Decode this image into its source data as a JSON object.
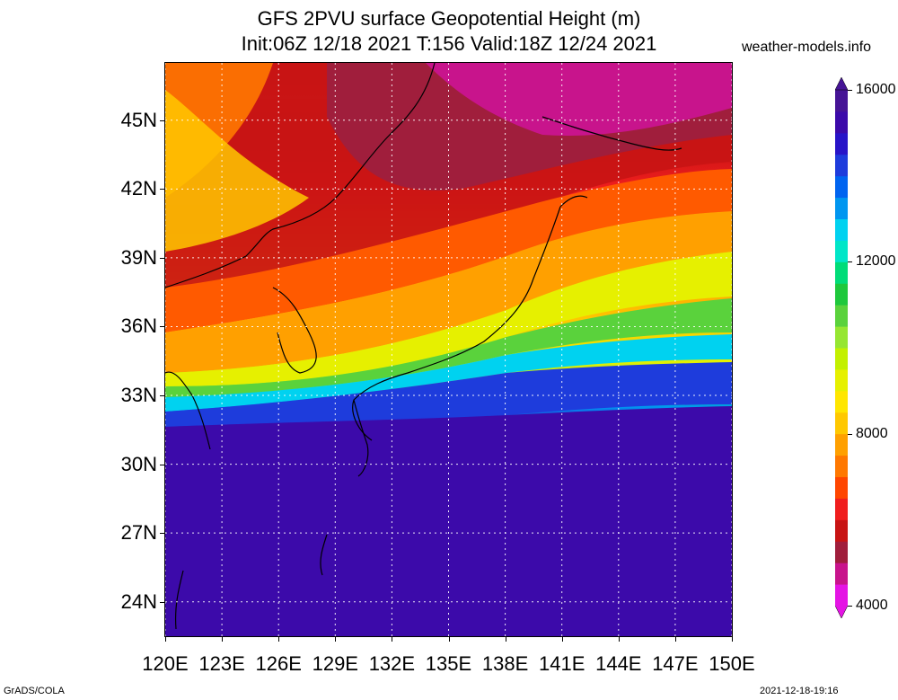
{
  "title": {
    "line1": "GFS 2PVU surface Geopotential Height (m)",
    "line2": "Init:06Z 12/18 2021 T:156 Valid:18Z 12/24 2021"
  },
  "site": "weather-models.info",
  "map": {
    "lon_range": [
      120,
      150
    ],
    "lat_range": [
      22.5,
      47.5
    ],
    "lat_labels": [
      "45N",
      "42N",
      "39N",
      "36N",
      "33N",
      "30N",
      "27N",
      "24N"
    ],
    "lat_values": [
      45,
      42,
      39,
      36,
      33,
      30,
      27,
      24
    ],
    "lon_labels": [
      "120E",
      "123E",
      "126E",
      "129E",
      "132E",
      "135E",
      "138E",
      "141E",
      "144E",
      "147E",
      "150E"
    ],
    "lon_values": [
      120,
      123,
      126,
      129,
      132,
      135,
      138,
      141,
      144,
      147,
      150
    ]
  },
  "colorbar": {
    "labels": [
      "16000",
      "12000",
      "8000",
      "4000"
    ],
    "values": [
      16000,
      12000,
      8000,
      4000
    ],
    "range": [
      4000,
      16000
    ],
    "colors": [
      "#e414e4",
      "#c8148c",
      "#a01e3c",
      "#c81414",
      "#f01e1e",
      "#ff4600",
      "#ff7800",
      "#ffa000",
      "#ffc800",
      "#ffe600",
      "#e6f000",
      "#c3f000",
      "#96e632",
      "#5ad23c",
      "#1ec83c",
      "#00dc78",
      "#00e6c8",
      "#00d2f0",
      "#0096f0",
      "#0064f0",
      "#1e3cdc",
      "#2814c8",
      "#3c0aaa",
      "#461496"
    ]
  },
  "credits": {
    "left": "GrADS/COLA",
    "right": "2021-12-18-19:16"
  }
}
